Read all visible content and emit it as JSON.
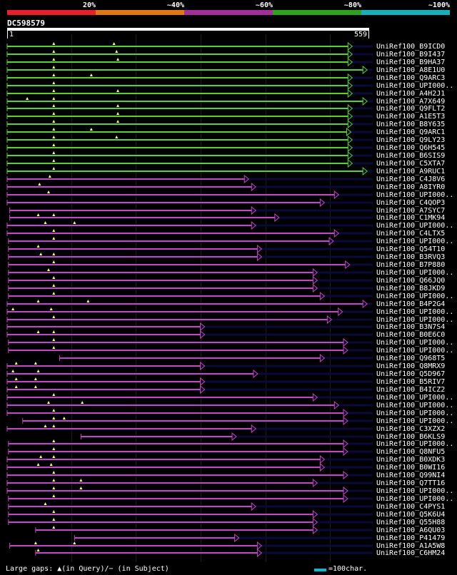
{
  "legend": [
    {
      "label": "20%",
      "color": "#e8202a"
    },
    {
      "label": "~40%",
      "color": "#e07818"
    },
    {
      "label": "~60%",
      "color": "#a03098"
    },
    {
      "label": "~80%",
      "color": "#30a020"
    },
    {
      "label": "~100%",
      "color": "#18b0b8"
    }
  ],
  "query": {
    "id": "DC598579",
    "start_label": "1",
    "end_label": "559",
    "length": 559
  },
  "colors": {
    "green": "#5cd02a",
    "purple": "#c04ab8",
    "track": "#0a0a3a",
    "marker": "#ffff80",
    "gridline": "#1d1d1d"
  },
  "hits": [
    {
      "name": "UniRef100_B9ICD0",
      "color": "green",
      "start": 1,
      "end": 534,
      "gaps": [
        73,
        166
      ]
    },
    {
      "name": "UniRef100_B9I437",
      "color": "green",
      "start": 1,
      "end": 534,
      "gaps": [
        73,
        170
      ]
    },
    {
      "name": "UniRef100_B9HA37",
      "color": "green",
      "start": 1,
      "end": 534,
      "gaps": [
        73,
        172
      ]
    },
    {
      "name": "UniRef100_A8E1U0",
      "color": "green",
      "start": 1,
      "end": 557,
      "gaps": [
        73
      ]
    },
    {
      "name": "UniRef100_Q9ARC3",
      "color": "green",
      "start": 1,
      "end": 534,
      "gaps": [
        73,
        131
      ]
    },
    {
      "name": "UniRef100_UPI000..",
      "color": "green",
      "start": 1,
      "end": 534,
      "gaps": [
        73
      ]
    },
    {
      "name": "UniRef100_A4H2J1",
      "color": "green",
      "start": 1,
      "end": 534,
      "gaps": [
        73,
        172
      ]
    },
    {
      "name": "UniRef100_A7X649",
      "color": "green",
      "start": 1,
      "end": 557,
      "gaps": [
        32,
        73
      ]
    },
    {
      "name": "UniRef100_Q9FLT2",
      "color": "green",
      "start": 1,
      "end": 534,
      "gaps": [
        73,
        172
      ]
    },
    {
      "name": "UniRef100_A1E5T3",
      "color": "green",
      "start": 1,
      "end": 534,
      "gaps": [
        73,
        172
      ]
    },
    {
      "name": "UniRef100_B8Y635",
      "color": "green",
      "start": 1,
      "end": 534,
      "gaps": [
        73,
        172
      ]
    },
    {
      "name": "UniRef100_Q9ARC1",
      "color": "green",
      "start": 1,
      "end": 532,
      "gaps": [
        73,
        131
      ]
    },
    {
      "name": "UniRef100_Q9LY23",
      "color": "green",
      "start": 1,
      "end": 534,
      "gaps": [
        73,
        170
      ]
    },
    {
      "name": "UniRef100_Q6H545",
      "color": "green",
      "start": 1,
      "end": 534,
      "gaps": [
        73
      ]
    },
    {
      "name": "UniRef100_B6SIS9",
      "color": "green",
      "start": 1,
      "end": 534,
      "gaps": [
        73
      ]
    },
    {
      "name": "UniRef100_C5XTA7",
      "color": "green",
      "start": 1,
      "end": 534,
      "gaps": [
        73
      ]
    },
    {
      "name": "UniRef100_A9RUC1",
      "color": "green",
      "start": 1,
      "end": 557,
      "gaps": [
        73
      ]
    },
    {
      "name": "UniRef100_C4J8V6",
      "color": "purple",
      "start": 1,
      "end": 374,
      "gaps": [
        67
      ]
    },
    {
      "name": "UniRef100_A8IYR0",
      "color": "purple",
      "start": 1,
      "end": 385,
      "gaps": [
        51
      ]
    },
    {
      "name": "UniRef100_UPI000..",
      "color": "purple",
      "start": 1,
      "end": 513,
      "gaps": [
        65
      ]
    },
    {
      "name": "UniRef100_C4QOP3",
      "color": "purple",
      "start": 1,
      "end": 491,
      "gaps": []
    },
    {
      "name": "UniRef100_A7SYC7",
      "color": "purple",
      "start": 5,
      "end": 385,
      "gaps": []
    },
    {
      "name": "UniRef100_C1MK94",
      "color": "purple",
      "start": 5,
      "end": 421,
      "gaps": [
        49,
        73
      ]
    },
    {
      "name": "UniRef100_UPI000..",
      "color": "purple",
      "start": 1,
      "end": 385,
      "gaps": [
        60,
        105
      ]
    },
    {
      "name": "UniRef100_C4LTX5",
      "color": "purple",
      "start": 1,
      "end": 513,
      "gaps": [
        73
      ]
    },
    {
      "name": "UniRef100_UPI000..",
      "color": "purple",
      "start": 3,
      "end": 505,
      "gaps": [
        73
      ]
    },
    {
      "name": "UniRef100_Q54T10",
      "color": "purple",
      "start": 3,
      "end": 394,
      "gaps": [
        49
      ]
    },
    {
      "name": "UniRef100_B3RVQ3",
      "color": "purple",
      "start": 3,
      "end": 394,
      "gaps": [
        53,
        73
      ]
    },
    {
      "name": "UniRef100_B7P880",
      "color": "purple",
      "start": 3,
      "end": 530,
      "gaps": [
        73
      ]
    },
    {
      "name": "UniRef100_UPI000..",
      "color": "purple",
      "start": 3,
      "end": 480,
      "gaps": [
        65
      ]
    },
    {
      "name": "UniRef100_Q66JQ0",
      "color": "purple",
      "start": 3,
      "end": 480,
      "gaps": [
        73
      ]
    },
    {
      "name": "UniRef100_B8JKD9",
      "color": "purple",
      "start": 3,
      "end": 480,
      "gaps": [
        73
      ]
    },
    {
      "name": "UniRef100_UPI000..",
      "color": "purple",
      "start": 3,
      "end": 491,
      "gaps": [
        73
      ]
    },
    {
      "name": "UniRef100_B4P2G4",
      "color": "purple",
      "start": 1,
      "end": 557,
      "gaps": [
        49,
        126
      ]
    },
    {
      "name": "UniRef100_UPI000..",
      "color": "purple",
      "start": 1,
      "end": 519,
      "gaps": [
        10,
        69
      ]
    },
    {
      "name": "UniRef100_UPI000..",
      "color": "purple",
      "start": 1,
      "end": 502,
      "gaps": [
        73
      ]
    },
    {
      "name": "UniRef100_B3N7S4",
      "color": "purple",
      "start": 1,
      "end": 306,
      "gaps": []
    },
    {
      "name": "UniRef100_B0E6C0",
      "color": "purple",
      "start": 1,
      "end": 306,
      "gaps": [
        49,
        73
      ]
    },
    {
      "name": "UniRef100_UPI000..",
      "color": "purple",
      "start": 3,
      "end": 527,
      "gaps": [
        73
      ]
    },
    {
      "name": "UniRef100_UPI000..",
      "color": "purple",
      "start": 3,
      "end": 527,
      "gaps": [
        73
      ]
    },
    {
      "name": "UniRef100_Q968T5",
      "color": "purple",
      "start": 82,
      "end": 491,
      "gaps": []
    },
    {
      "name": "UniRef100_Q8MRX9",
      "color": "purple",
      "start": 1,
      "end": 306,
      "gaps": [
        15,
        45
      ]
    },
    {
      "name": "UniRef100_Q5D967",
      "color": "purple",
      "start": 1,
      "end": 388,
      "gaps": [
        10,
        49
      ]
    },
    {
      "name": "UniRef100_B5RIV7",
      "color": "purple",
      "start": 1,
      "end": 306,
      "gaps": [
        15,
        45
      ]
    },
    {
      "name": "UniRef100_B4ICZ2",
      "color": "purple",
      "start": 1,
      "end": 306,
      "gaps": [
        15,
        45
      ]
    },
    {
      "name": "UniRef100_UPI000..",
      "color": "purple",
      "start": 1,
      "end": 480,
      "gaps": [
        73
      ]
    },
    {
      "name": "UniRef100_UPI000..",
      "color": "purple",
      "start": 1,
      "end": 513,
      "gaps": [
        65,
        117
      ]
    },
    {
      "name": "UniRef100_UPI000..",
      "color": "purple",
      "start": 1,
      "end": 527,
      "gaps": [
        73
      ]
    },
    {
      "name": "UniRef100_UPI000..",
      "color": "purple",
      "start": 25,
      "end": 527,
      "gaps": [
        73,
        89
      ]
    },
    {
      "name": "UniRef100_C3XZX2",
      "color": "purple",
      "start": 1,
      "end": 385,
      "gaps": [
        60,
        73
      ]
    },
    {
      "name": "UniRef100_B6KLS9",
      "color": "purple",
      "start": 115,
      "end": 355,
      "gaps": []
    },
    {
      "name": "UniRef100_UPI000..",
      "color": "purple",
      "start": 3,
      "end": 527,
      "gaps": [
        73
      ]
    },
    {
      "name": "UniRef100_Q8NFU5",
      "color": "purple",
      "start": 3,
      "end": 527,
      "gaps": [
        73
      ]
    },
    {
      "name": "UniRef100_B0XDK3",
      "color": "purple",
      "start": 1,
      "end": 491,
      "gaps": [
        53,
        73
      ]
    },
    {
      "name": "UniRef100_B0WI16",
      "color": "purple",
      "start": 1,
      "end": 491,
      "gaps": [
        49,
        69
      ]
    },
    {
      "name": "UniRef100_Q99NI4",
      "color": "purple",
      "start": 1,
      "end": 527,
      "gaps": [
        73
      ]
    },
    {
      "name": "UniRef100_Q7TT16",
      "color": "purple",
      "start": 1,
      "end": 480,
      "gaps": [
        73,
        115
      ]
    },
    {
      "name": "UniRef100_UPI000..",
      "color": "purple",
      "start": 1,
      "end": 527,
      "gaps": [
        73,
        115
      ]
    },
    {
      "name": "UniRef100_UPI000..",
      "color": "purple",
      "start": 3,
      "end": 527,
      "gaps": [
        73
      ]
    },
    {
      "name": "UniRef100_C4PYS1",
      "color": "purple",
      "start": 3,
      "end": 385,
      "gaps": [
        60
      ]
    },
    {
      "name": "UniRef100_Q5K6U4",
      "color": "purple",
      "start": 3,
      "end": 480,
      "gaps": [
        73
      ]
    },
    {
      "name": "UniRef100_Q55H88",
      "color": "purple",
      "start": 3,
      "end": 480,
      "gaps": [
        73
      ]
    },
    {
      "name": "UniRef100_A6QU03",
      "color": "purple",
      "start": 45,
      "end": 480,
      "gaps": [
        73
      ]
    },
    {
      "name": "UniRef100_P41479",
      "color": "purple",
      "start": 105,
      "end": 359,
      "gaps": []
    },
    {
      "name": "UniRef100_A1A5W8",
      "color": "purple",
      "start": 5,
      "end": 394,
      "gaps": [
        45,
        105
      ]
    },
    {
      "name": "UniRef100_C6HM24",
      "color": "purple",
      "start": 45,
      "end": 394,
      "gaps": [
        49
      ]
    }
  ],
  "footer": {
    "large_gaps_text": "Large gaps: ▲(in Query)/− (in Subject)",
    "scale_text": "=100char."
  }
}
